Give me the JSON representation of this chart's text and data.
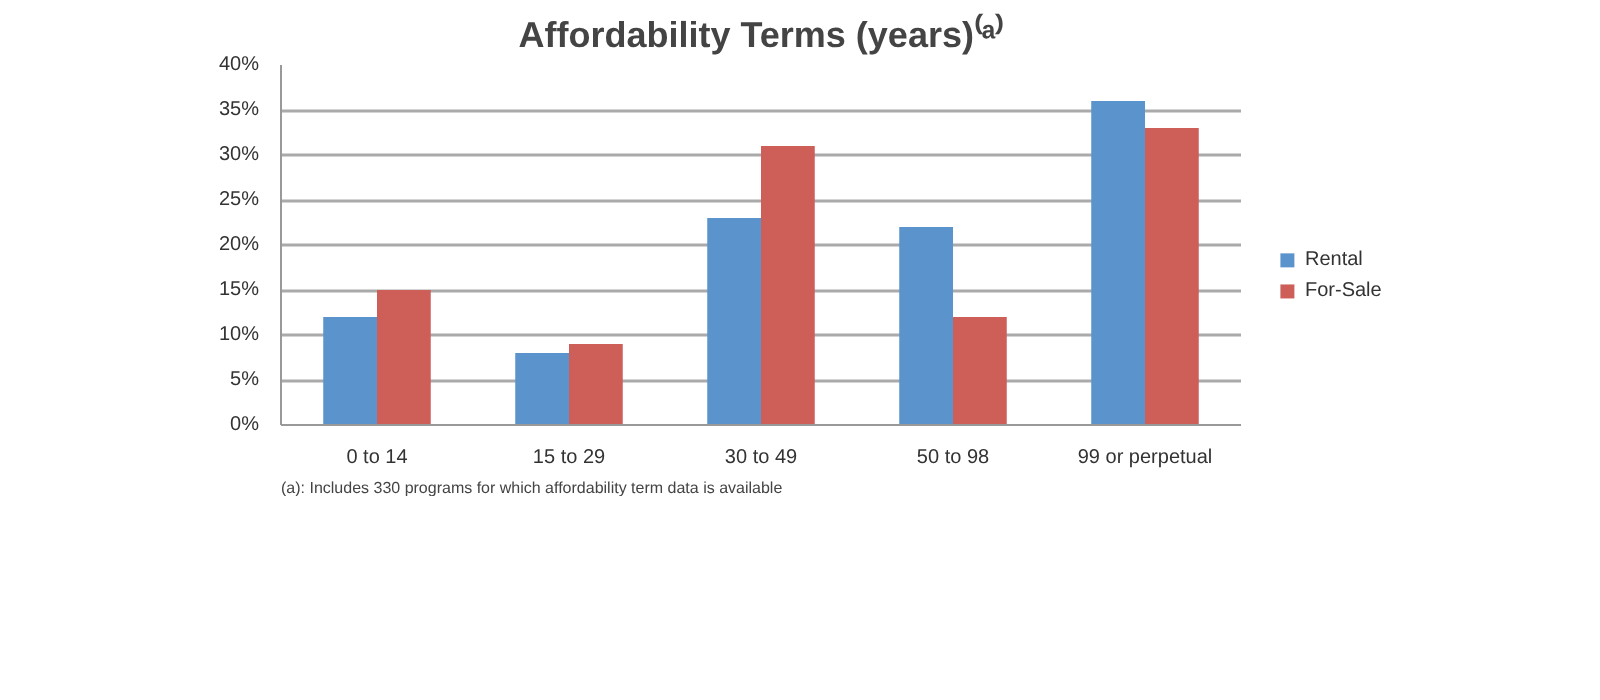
{
  "chart_data": {
    "type": "bar",
    "title": "Affordability Terms (years)⁽ᵃ⁾",
    "categories": [
      "0 to 14",
      "15 to 29",
      "30 to 49",
      "50 to 98",
      "99 or perpetual"
    ],
    "series": [
      {
        "name": "Rental",
        "color": "#5b93cd",
        "values": [
          12,
          8,
          23,
          22,
          36
        ]
      },
      {
        "name": "For-Sale",
        "color": "#cd5f58",
        "values": [
          15,
          9,
          31,
          12,
          33
        ]
      }
    ],
    "ylim": [
      0,
      40
    ],
    "yticks": [
      {
        "value": 0,
        "label": "0%"
      },
      {
        "value": 5,
        "label": "5%"
      },
      {
        "value": 10,
        "label": "10%"
      },
      {
        "value": 15,
        "label": "15%"
      },
      {
        "value": 20,
        "label": "20%"
      },
      {
        "value": 25,
        "label": "25%"
      },
      {
        "value": 30,
        "label": "30%"
      },
      {
        "value": 35,
        "label": "35%"
      },
      {
        "value": 40,
        "label": "40%"
      }
    ],
    "grid": "y",
    "legend": "right",
    "annotations": [
      "(a): Includes 330 programs for which affordability term data is available"
    ]
  }
}
